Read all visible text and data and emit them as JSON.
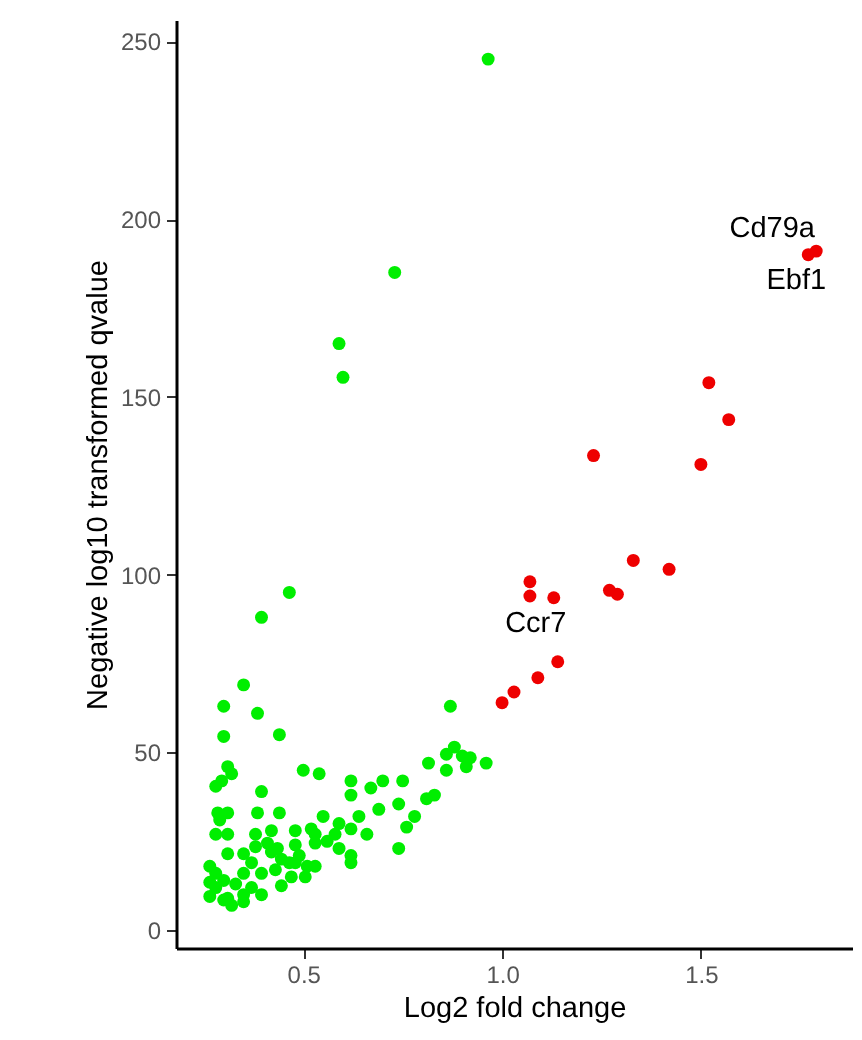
{
  "chart_data": {
    "type": "scatter",
    "xlabel": "Log2 fold change",
    "ylabel": "Negative log10 transformed qvalue",
    "xlim": [
      0.18,
      1.88
    ],
    "ylim": [
      -5,
      256
    ],
    "xticks": [
      {
        "value": 0.5,
        "label": "0.5"
      },
      {
        "value": 1,
        "label": "1.0"
      },
      {
        "value": 1.5,
        "label": "1.5"
      }
    ],
    "yticks": [
      0,
      50,
      100,
      150,
      200,
      250
    ],
    "grid": false,
    "marker": "circle",
    "series": [
      {
        "color": "#00ee00",
        "x": [
          0.965,
          0.73,
          0.59,
          0.6,
          0.465,
          0.395,
          0.35,
          0.3,
          0.3,
          0.385,
          0.44,
          0.87,
          0.815,
          0.86,
          0.88,
          0.9,
          0.92,
          0.96,
          0.86,
          0.91,
          0.83,
          0.81,
          0.76,
          0.78,
          0.74,
          0.74,
          0.75,
          0.7,
          0.67,
          0.62,
          0.62,
          0.69,
          0.64,
          0.59,
          0.62,
          0.66,
          0.58,
          0.56,
          0.59,
          0.62,
          0.62,
          0.53,
          0.55,
          0.53,
          0.48,
          0.52,
          0.54,
          0.5,
          0.48,
          0.44,
          0.42,
          0.395,
          0.385,
          0.38,
          0.31,
          0.32,
          0.295,
          0.28,
          0.31,
          0.285,
          0.29,
          0.28,
          0.31,
          0.49,
          0.51,
          0.48,
          0.445,
          0.42,
          0.43,
          0.395,
          0.37,
          0.38,
          0.35,
          0.33,
          0.3,
          0.28,
          0.265,
          0.28,
          0.265,
          0.31,
          0.32,
          0.35,
          0.395,
          0.445,
          0.47,
          0.505,
          0.53,
          0.41,
          0.435,
          0.35,
          0.31,
          0.35,
          0.3,
          0.265,
          0.37,
          0.465
        ],
        "values": [
          245,
          185,
          165,
          155.5,
          95,
          88,
          69,
          63,
          54.5,
          61,
          55,
          63,
          47,
          49.5,
          51.5,
          49,
          48.5,
          47,
          45,
          46,
          38,
          37,
          29,
          32,
          23,
          35.5,
          42,
          42,
          40,
          42,
          38,
          34,
          32,
          30,
          28.5,
          27,
          27,
          25,
          23,
          21,
          19,
          27,
          32,
          24.5,
          24,
          28.5,
          44,
          45,
          28,
          33,
          28,
          39,
          33,
          27,
          46,
          44,
          42,
          40.5,
          33,
          33,
          31,
          27,
          27,
          21,
          18,
          19,
          20,
          22,
          17,
          16,
          19,
          23.5,
          16,
          13,
          14,
          12,
          13.5,
          16,
          18,
          9,
          7,
          8,
          10,
          12.5,
          15,
          15,
          18,
          24.5,
          23,
          21.5,
          21.5,
          10,
          8.5,
          9.5,
          12,
          19
        ]
      },
      {
        "color": "#ee0000",
        "x": [
          1.79,
          1.77,
          1.23,
          1.52,
          1.57,
          1.5,
          1.33,
          1.42,
          1.27,
          1.29,
          1.07,
          1.07,
          1.13,
          1.14,
          1.09,
          1.03,
          1.0
        ],
        "values": [
          191,
          190,
          133.5,
          154,
          143.6,
          131,
          104,
          101.5,
          95.6,
          94.5,
          98,
          94,
          93.5,
          75.5,
          71,
          67,
          64
        ]
      }
    ],
    "annotations": [
      {
        "text": "Cd79a",
        "x": 1.79,
        "y": 191
      },
      {
        "text": "Ebf1",
        "x": 1.77,
        "y": 190
      },
      {
        "text": "Ccr7",
        "x": 1.13,
        "y": 93.5
      }
    ]
  }
}
